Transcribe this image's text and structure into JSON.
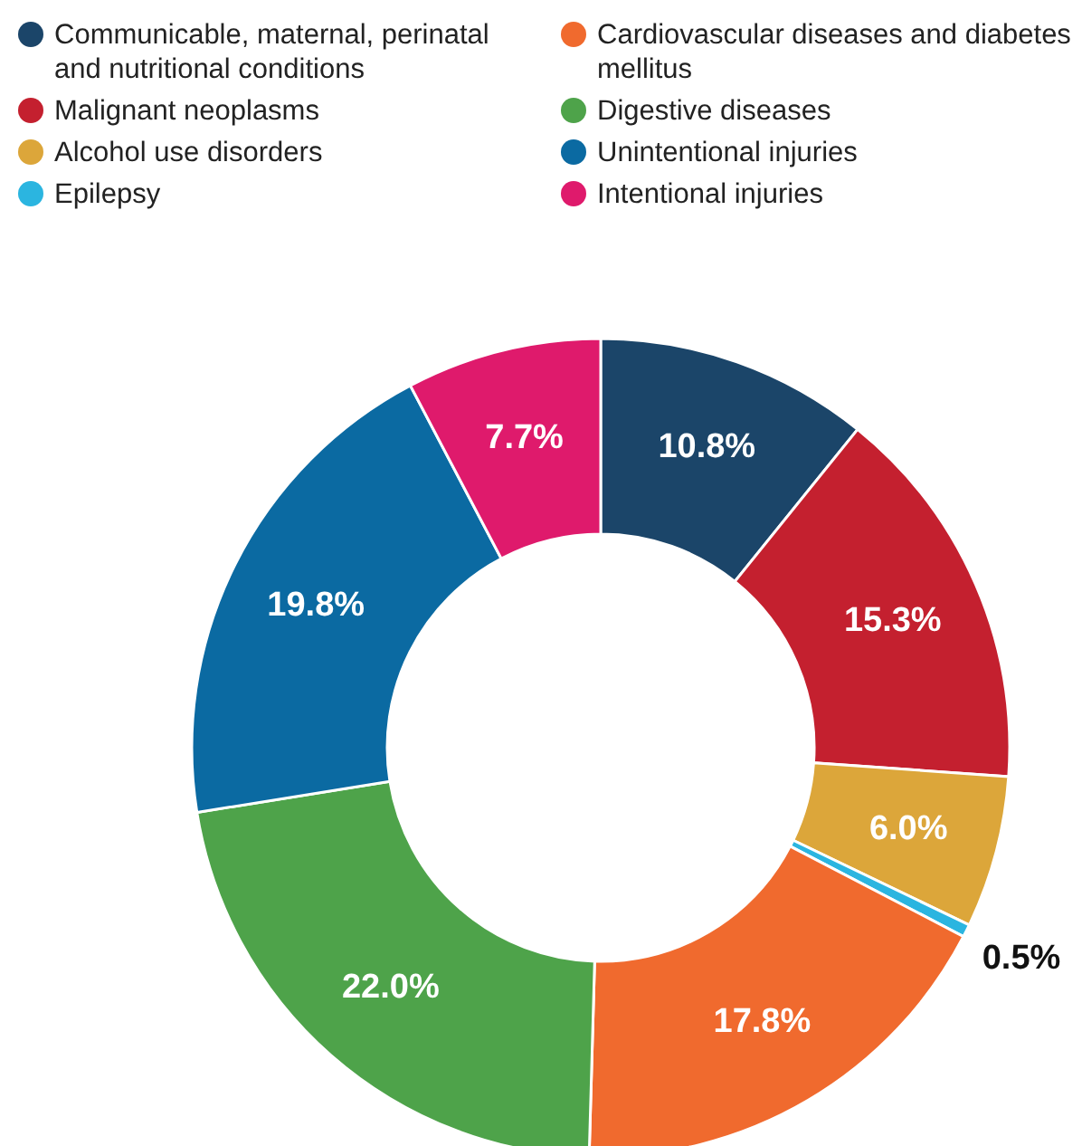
{
  "chart_data": {
    "type": "donut",
    "categories": [
      "Communicable, maternal, perinatal and nutritional conditions",
      "Malignant neoplasms",
      "Alcohol use disorders",
      "Epilepsy",
      "Cardiovascular diseases and diabetes mellitus",
      "Digestive diseases",
      "Unintentional injuries",
      "Intentional injuries"
    ],
    "values": [
      10.8,
      15.3,
      6.0,
      0.5,
      17.8,
      22.0,
      19.8,
      7.7
    ],
    "value_labels": [
      "10.8%",
      "15.3%",
      "6.0%",
      "0.5%",
      "17.8%",
      "22.0%",
      "19.8%",
      "7.7%"
    ],
    "colors": [
      "#1b4569",
      "#c4202f",
      "#dca63a",
      "#2bb5e0",
      "#f06a2e",
      "#4ea34a",
      "#0b6aa2",
      "#df1a6c"
    ],
    "legend": "top"
  }
}
